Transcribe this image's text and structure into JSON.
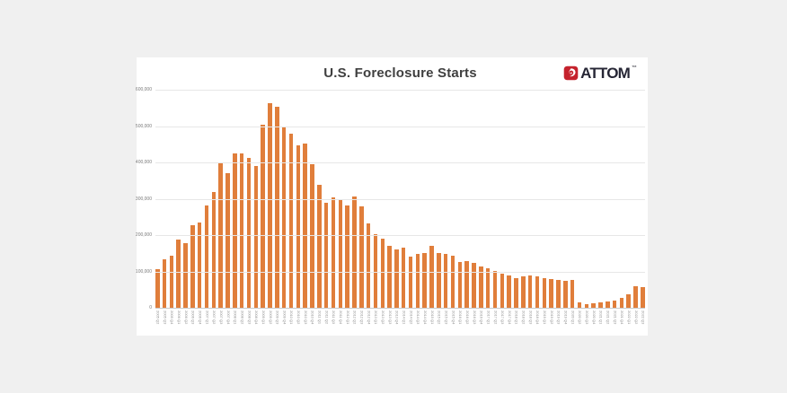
{
  "page": {
    "background_color": "#f0f0f0"
  },
  "card": {
    "background_color": "#ffffff"
  },
  "header": {
    "logo": {
      "brand": "ATTOM",
      "trademark": "™",
      "icon": "attom-flame-icon",
      "icon_color": "#c5222d",
      "text_color": "#262635"
    }
  },
  "chart_data": {
    "type": "bar",
    "title": "U.S. Foreclosure Starts",
    "xlabel": "",
    "ylabel": "",
    "legend": false,
    "grid": true,
    "bar_color": "#e07e3b",
    "ylim": [
      0,
      600000
    ],
    "ytick_values": [
      0,
      100000,
      200000,
      300000,
      400000,
      500000,
      600000
    ],
    "ytick_labels": [
      "0",
      "100,000",
      "200,000",
      "300,000",
      "400,000",
      "500,000",
      "600,000"
    ],
    "categories": [
      "2005 Q2",
      "2005 Q3",
      "2005 Q4",
      "2006 Q1",
      "2006 Q2",
      "2006 Q3",
      "2006 Q4",
      "2007 Q1",
      "2007 Q2",
      "2007 Q3",
      "2007 Q4",
      "2008 Q1",
      "2008 Q2",
      "2008 Q3",
      "2008 Q4",
      "2009 Q1",
      "2009 Q2",
      "2009 Q3",
      "2009 Q4",
      "2010 Q1",
      "2010 Q2",
      "2010 Q3",
      "2010 Q4",
      "2011 Q1",
      "2011 Q2",
      "2011 Q3",
      "2011 Q4",
      "2012 Q1",
      "2012 Q2",
      "2012 Q3",
      "2012 Q4",
      "2013 Q1",
      "2013 Q2",
      "2013 Q3",
      "2013 Q4",
      "2014 Q1",
      "2014 Q2",
      "2014 Q3",
      "2014 Q4",
      "2015 Q1",
      "2015 Q2",
      "2015 Q3",
      "2015 Q4",
      "2016 Q1",
      "2016 Q2",
      "2016 Q3",
      "2016 Q4",
      "2017 Q1",
      "2017 Q2",
      "2017 Q3",
      "2017 Q4",
      "2018 Q1",
      "2018 Q2",
      "2018 Q3",
      "2018 Q4",
      "2019 Q1",
      "2019 Q2",
      "2019 Q3",
      "2019 Q4",
      "2020 Q1",
      "2020 Q2",
      "2020 Q3",
      "2020 Q4",
      "2021 Q1",
      "2021 Q2",
      "2021 Q3",
      "2021 Q4",
      "2022 Q1",
      "2022 Q2",
      "2022 Q3"
    ],
    "values": [
      106000,
      133000,
      143000,
      188000,
      178000,
      228000,
      235000,
      281000,
      318000,
      400000,
      370000,
      424000,
      424000,
      413000,
      391000,
      503000,
      563000,
      554000,
      498000,
      478000,
      446000,
      452000,
      396000,
      338000,
      289000,
      303000,
      298000,
      281000,
      306000,
      278000,
      231000,
      203000,
      190000,
      170000,
      160000,
      166000,
      141000,
      148000,
      150000,
      170000,
      150000,
      147000,
      143000,
      127000,
      129000,
      124000,
      113000,
      109000,
      101000,
      94000,
      88000,
      82000,
      86000,
      90000,
      86000,
      82000,
      78000,
      77000,
      75000,
      77000,
      14000,
      10000,
      12000,
      16000,
      18000,
      20000,
      26000,
      38000,
      59000,
      58000
    ]
  }
}
